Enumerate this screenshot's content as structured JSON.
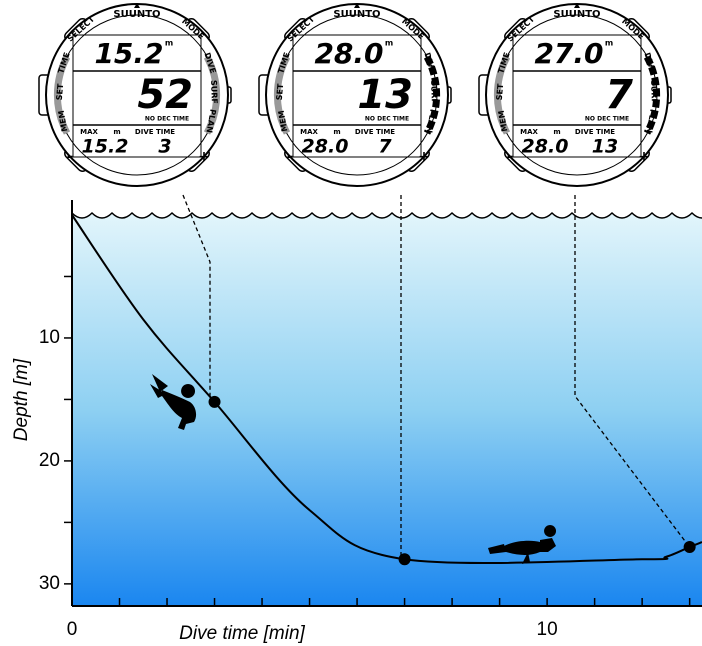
{
  "chart_data": {
    "type": "line",
    "x_label": "Dive time [min]",
    "y_label": "Depth [m]",
    "x": [
      0,
      1.5,
      3,
      5,
      7,
      12,
      12.5,
      13,
      13.26
    ],
    "series": [
      {
        "color": "#000000",
        "values": [
          0,
          8.5,
          15.2,
          24,
          28.0,
          28.0,
          27.8,
          27.0,
          26.6
        ]
      }
    ],
    "markers": [
      2,
      4,
      7
    ],
    "xlim": [
      0,
      13.26
    ],
    "ylim": [
      0,
      31.8
    ],
    "xticks": [
      0,
      10
    ],
    "yticks": [
      10,
      20,
      30
    ],
    "xminor_ticks": [
      1,
      2,
      3,
      4,
      5,
      6,
      7,
      8,
      9,
      11,
      12,
      13
    ],
    "yminor_ticks": [
      5,
      15,
      25
    ],
    "y_inverted": true
  },
  "watch_labels": {
    "brand": "SUUNTO",
    "select": "SELECT",
    "mode": "MODE",
    "time": "TIME",
    "dive": "DIVE",
    "set": "SET",
    "surf": "SURF",
    "mem": "MEM",
    "plan": "PLAN",
    "unit": "m",
    "no_dec": "NO DEC TIME",
    "max": "MAX",
    "max_unit": "m",
    "dive_time": "DIVE TIME",
    "minus": "-",
    "plus": "+"
  },
  "watches": [
    {
      "depth": "15.2",
      "no_dec_time": "52",
      "max_depth": "15.2",
      "dive_time": "3"
    },
    {
      "depth": "28.0",
      "no_dec_time": "13",
      "max_depth": "28.0",
      "dive_time": "7"
    },
    {
      "depth": "27.0",
      "no_dec_time": "7",
      "max_depth": "28.0",
      "dive_time": "13"
    }
  ]
}
